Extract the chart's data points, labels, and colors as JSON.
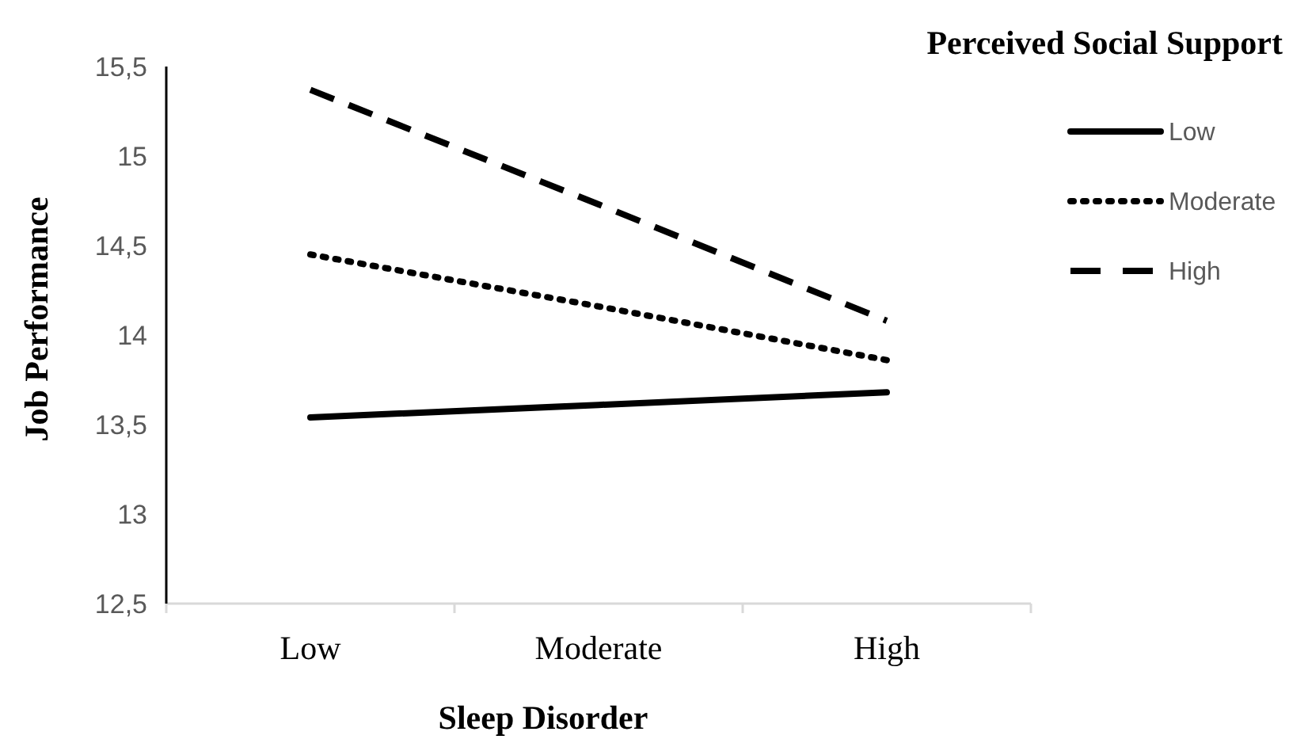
{
  "chart_data": {
    "type": "line",
    "xlabel": "Sleep Disorder",
    "ylabel": "Job Performance",
    "legend_title": "Perceived Social Support",
    "categories": [
      "Low",
      "Moderate",
      "High"
    ],
    "series": [
      {
        "name": "Low",
        "color": "#000000",
        "line_style": "solid",
        "values": [
          13.54,
          13.61,
          13.68
        ]
      },
      {
        "name": "Moderate",
        "color": "#000000",
        "line_style": "dotted",
        "values": [
          14.45,
          14.16,
          13.86
        ]
      },
      {
        "name": "High",
        "color": "#000000",
        "line_style": "dashed",
        "values": [
          15.37,
          14.73,
          14.08
        ]
      }
    ],
    "ylim": [
      12.5,
      15.5
    ],
    "yticks": [
      {
        "value": 12.5,
        "label": "12,5"
      },
      13,
      {
        "value": 13.5,
        "label": "13,5"
      },
      14,
      {
        "value": 14.5,
        "label": "14,5"
      },
      15,
      {
        "value": 15.5,
        "label": "15,5"
      }
    ],
    "grid": false,
    "legend": "top right",
    "marker": "none"
  }
}
